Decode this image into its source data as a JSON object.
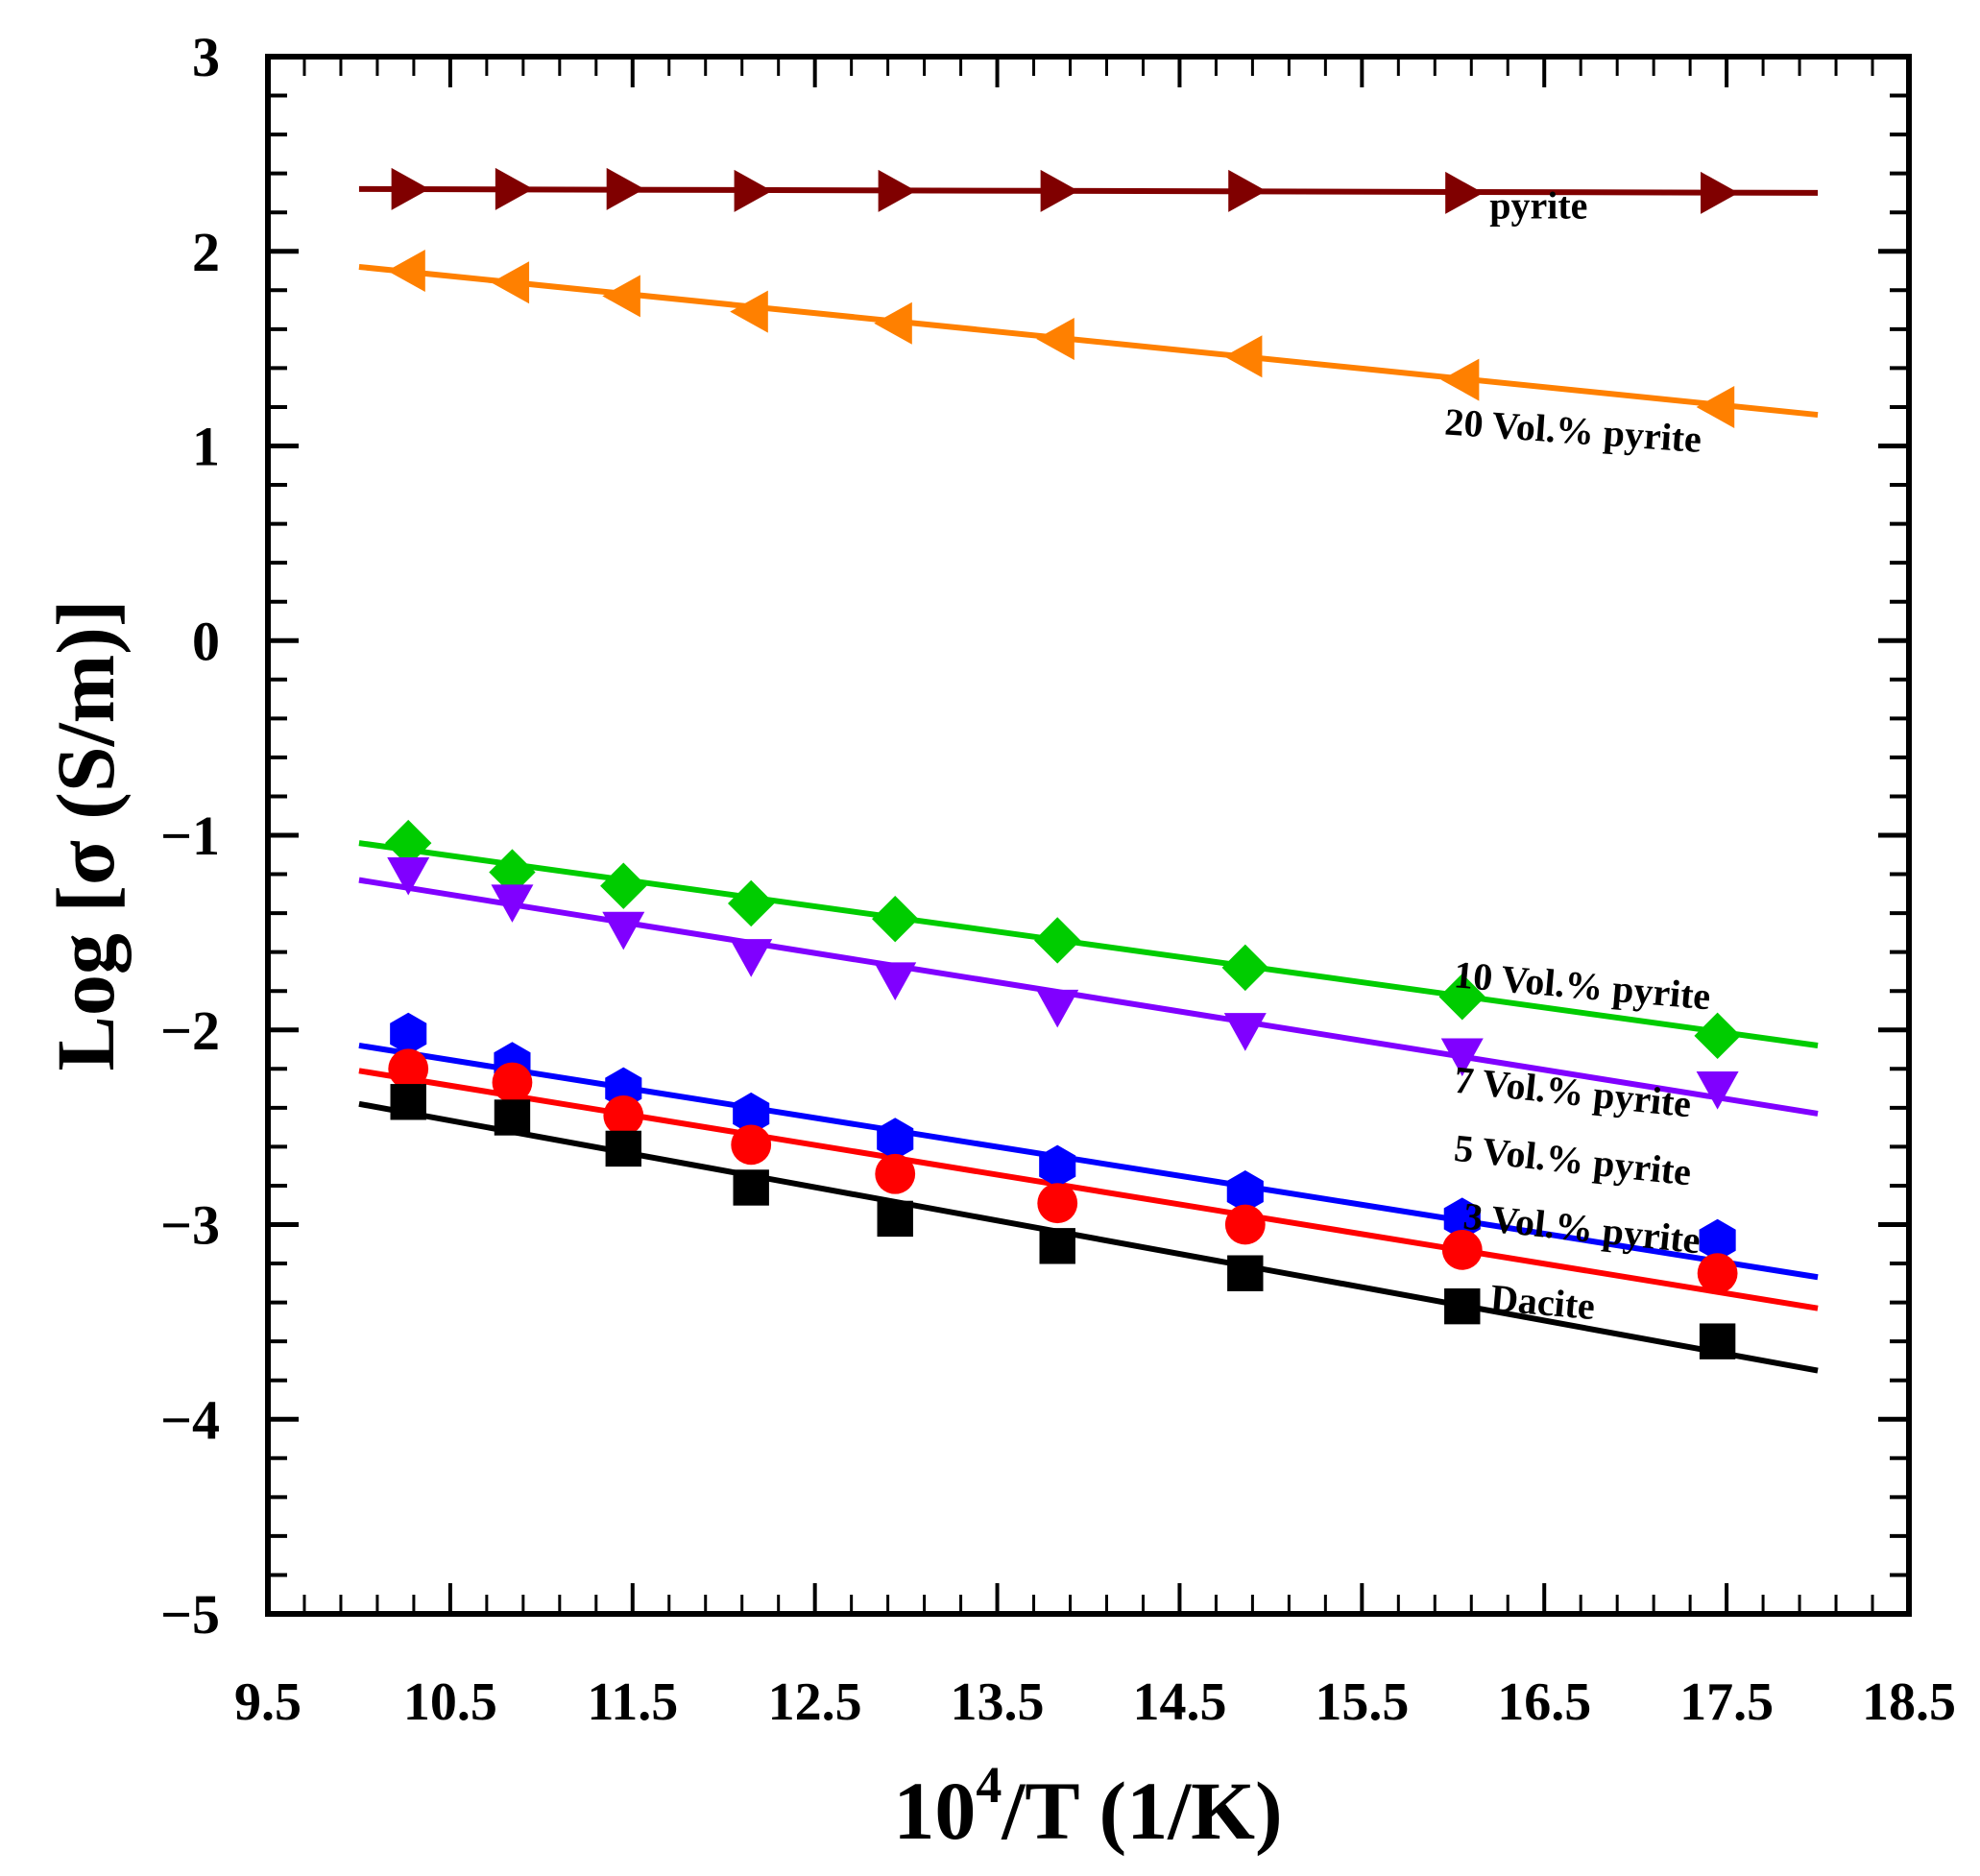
{
  "chart_data": {
    "type": "scatter",
    "title": "",
    "xlabel_base": "10",
    "xlabel_sup": "4",
    "xlabel_rest": "/T (1/K)",
    "ylabel": "Log [σ (S/m)]",
    "xlim": [
      9.5,
      18.5
    ],
    "ylim": [
      -5,
      3
    ],
    "xticks": [
      "9.5",
      "10.5",
      "11.5",
      "12.5",
      "13.5",
      "14.5",
      "15.5",
      "16.5",
      "17.5",
      "18.5"
    ],
    "yticks": [
      "3",
      "2",
      "1",
      "0",
      "−1",
      "−2",
      "−3",
      "−4",
      "−5"
    ],
    "grid": false,
    "x": [
      10.27,
      10.84,
      11.45,
      12.15,
      12.94,
      13.83,
      14.86,
      16.05,
      17.45
    ],
    "fit_x": [
      10.0,
      18.0
    ],
    "series": [
      {
        "name": "pyrite",
        "color": "#800000",
        "marker": "triangle-right",
        "values": [
          2.32,
          2.32,
          2.32,
          2.31,
          2.31,
          2.31,
          2.31,
          2.3,
          2.3
        ],
        "fit": [
          2.32,
          2.3
        ],
        "label_at": [
          16.2,
          2.17
        ],
        "label_angle": 0
      },
      {
        "name": "20 Vol.% pyrite",
        "color": "#ff8000",
        "marker": "triangle-left",
        "values": [
          1.9,
          1.84,
          1.77,
          1.69,
          1.63,
          1.55,
          1.46,
          1.34,
          1.2
        ],
        "fit": [
          1.92,
          1.16
        ],
        "label_at": [
          15.95,
          1.06
        ],
        "label_angle": 4
      },
      {
        "name": "10 Vol.% pyrite",
        "color": "#00cc00",
        "marker": "diamond",
        "values": [
          -1.04,
          -1.19,
          -1.26,
          -1.35,
          -1.43,
          -1.54,
          -1.68,
          -1.83,
          -2.03
        ],
        "fit": [
          -1.04,
          -2.08
        ],
        "label_at": [
          16.0,
          -1.78
        ],
        "label_angle": 5
      },
      {
        "name": "7 Vol.% pyrite",
        "color": "#8000ff",
        "marker": "triangle-down",
        "values": [
          -1.2,
          -1.34,
          -1.48,
          -1.62,
          -1.74,
          -1.88,
          -2.0,
          -2.13,
          -2.3
        ],
        "fit": [
          -1.23,
          -2.43
        ],
        "label_at": [
          16.0,
          -2.32
        ],
        "label_angle": 6
      },
      {
        "name": "5 Vol.% pyrite",
        "color": "#0000ff",
        "marker": "hexagon",
        "values": [
          -2.02,
          -2.17,
          -2.3,
          -2.43,
          -2.56,
          -2.7,
          -2.83,
          -2.97,
          -3.08
        ],
        "fit": [
          -2.08,
          -3.27
        ],
        "label_at": [
          16.0,
          -2.67
        ],
        "label_angle": 6
      },
      {
        "name": "3 Vol.% pyrite",
        "color": "#ff0000",
        "marker": "circle",
        "values": [
          -2.2,
          -2.27,
          -2.44,
          -2.59,
          -2.74,
          -2.89,
          -3.0,
          -3.13,
          -3.25
        ],
        "fit": [
          -2.21,
          -3.43
        ],
        "label_at": [
          16.05,
          -3.02
        ],
        "label_angle": 6
      },
      {
        "name": "Dacite",
        "color": "#000000",
        "marker": "square",
        "values": [
          -2.37,
          -2.45,
          -2.61,
          -2.81,
          -2.97,
          -3.11,
          -3.25,
          -3.42,
          -3.6
        ],
        "fit": [
          -2.38,
          -3.75
        ],
        "label_at": [
          16.2,
          -3.44
        ],
        "label_angle": 5
      }
    ]
  }
}
